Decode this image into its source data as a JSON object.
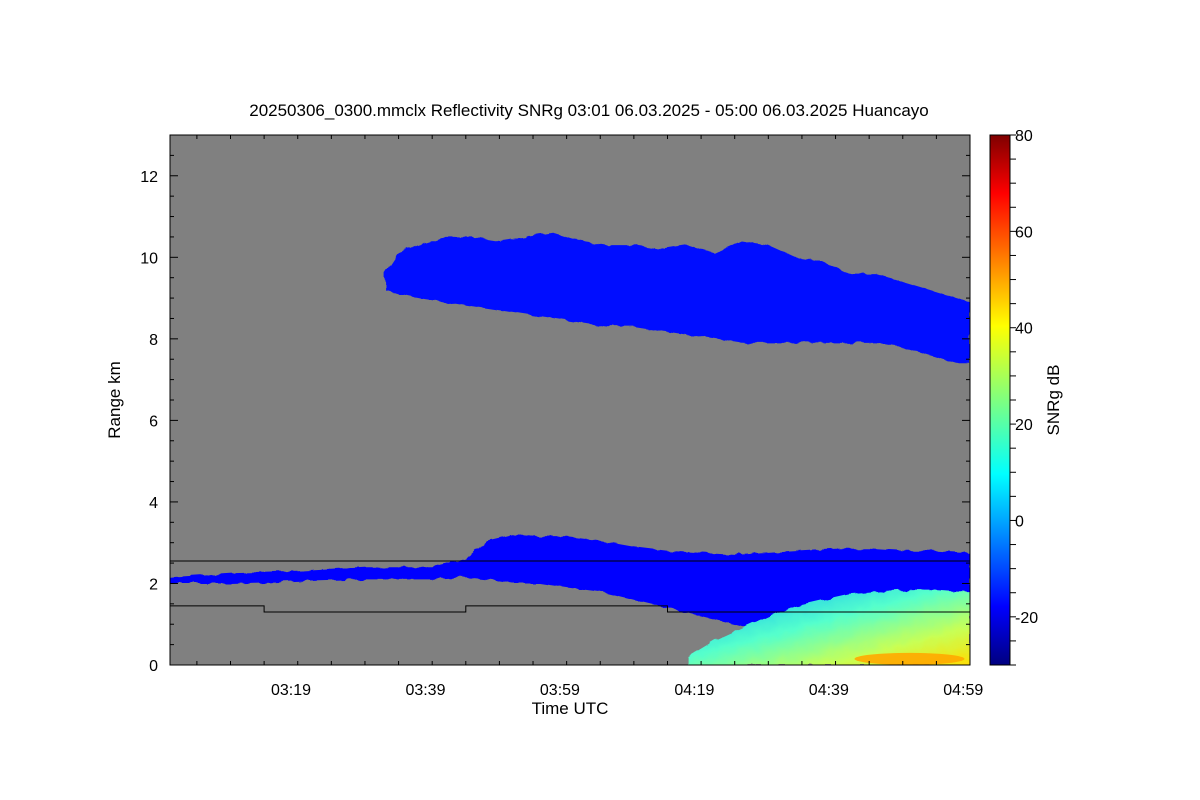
{
  "chart_data": {
    "type": "heatmap",
    "title": "20250306_0300.mmclx Reflectivity SNRg   03:01 06.03.2025 - 05:00 06.03.2025 Huancayo",
    "xlabel": "Time UTC",
    "ylabel": "Range km",
    "colorbar_label": "SNRg dB",
    "x_range_minutes_utc": [
      181,
      300
    ],
    "x_ticks": [
      {
        "value": 199,
        "label": "03:19"
      },
      {
        "value": 219,
        "label": "03:39"
      },
      {
        "value": 239,
        "label": "03:59"
      },
      {
        "value": 259,
        "label": "04:19"
      },
      {
        "value": 279,
        "label": "04:39"
      },
      {
        "value": 299,
        "label": "04:59"
      }
    ],
    "ylim": [
      0,
      13
    ],
    "y_ticks": [
      0,
      2,
      4,
      6,
      8,
      10,
      12
    ],
    "colorbar_range": [
      -30,
      80
    ],
    "colorbar_ticks": [
      -20,
      0,
      20,
      40,
      60,
      80
    ],
    "background_color": "#808080",
    "colormap": "jet",
    "upper_cloud_layer": {
      "x": [
        213,
        215,
        218,
        222,
        226,
        230,
        234,
        238,
        242,
        246,
        250,
        254,
        258,
        262,
        266,
        270,
        274,
        278,
        282,
        286,
        290,
        294,
        298,
        300
      ],
      "top_km": [
        9.6,
        10.1,
        10.3,
        10.5,
        10.5,
        10.4,
        10.5,
        10.6,
        10.4,
        10.3,
        10.3,
        10.2,
        10.3,
        10.1,
        10.4,
        10.3,
        10.0,
        9.9,
        9.6,
        9.6,
        9.4,
        9.2,
        9.0,
        8.9
      ],
      "base_km": [
        9.2,
        9.1,
        9.0,
        8.9,
        8.8,
        8.7,
        8.6,
        8.5,
        8.4,
        8.3,
        8.3,
        8.2,
        8.1,
        8.0,
        7.9,
        7.9,
        7.9,
        7.9,
        7.9,
        7.9,
        7.8,
        7.6,
        7.4,
        7.4
      ],
      "snr_db": -15
    },
    "lower_cloud_layer": {
      "x": [
        181,
        190,
        200,
        210,
        220,
        225,
        228,
        232,
        236,
        240,
        245,
        250,
        255,
        260,
        265,
        270,
        275,
        280,
        285,
        290,
        295,
        300
      ],
      "top_km": [
        2.15,
        2.25,
        2.3,
        2.4,
        2.4,
        2.6,
        3.05,
        3.2,
        3.15,
        3.15,
        3.05,
        2.9,
        2.8,
        2.75,
        2.7,
        2.75,
        2.8,
        2.85,
        2.85,
        2.8,
        2.8,
        2.75
      ],
      "base_km": [
        2.0,
        2.0,
        2.05,
        2.1,
        2.1,
        2.15,
        2.1,
        2.0,
        2.0,
        1.9,
        1.8,
        1.6,
        1.4,
        1.2,
        1.0,
        0.8,
        0.4,
        0.2,
        0.1,
        0.05,
        0.05,
        0.05
      ],
      "snr_db": -16
    },
    "boundary_layer_echo": {
      "x": [
        258,
        262,
        266,
        270,
        274,
        278,
        282,
        286,
        290,
        294,
        298,
        300
      ],
      "top_km": [
        0.2,
        0.6,
        0.9,
        1.2,
        1.45,
        1.6,
        1.75,
        1.8,
        1.85,
        1.85,
        1.8,
        1.8
      ],
      "peak_snr_db": 48
    },
    "reference_lines": [
      {
        "name": "upper",
        "x": [
          181,
          300
        ],
        "y_km": [
          2.55,
          2.55
        ]
      },
      {
        "name": "lower",
        "x": [
          181,
          195,
          195,
          225,
          225,
          255,
          255,
          300
        ],
        "y_km": [
          1.45,
          1.45,
          1.3,
          1.3,
          1.45,
          1.45,
          1.3,
          1.3
        ]
      }
    ]
  }
}
